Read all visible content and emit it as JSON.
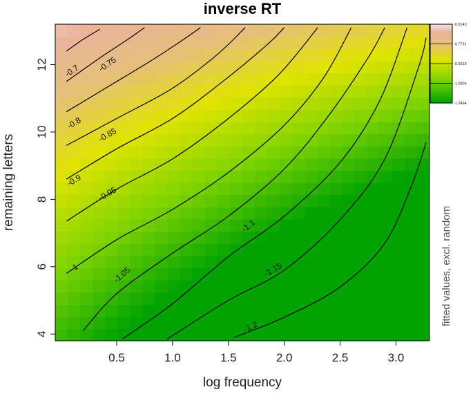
{
  "chart_data": {
    "type": "heatmap",
    "title": "inverse RT",
    "xlabel": "log frequency",
    "ylabel": "remaining letters",
    "xlim": [
      -0.05,
      3.3
    ],
    "ylim": [
      3.8,
      13.2
    ],
    "x_ticks": [
      {
        "value": 0.5,
        "label": "0.5"
      },
      {
        "value": 1.0,
        "label": "1.0"
      },
      {
        "value": 1.5,
        "label": "1.5"
      },
      {
        "value": 2.0,
        "label": "2.0"
      },
      {
        "value": 2.5,
        "label": "2.5"
      },
      {
        "value": 3.0,
        "label": "3.0"
      }
    ],
    "y_ticks": [
      {
        "value": 4,
        "label": "4"
      },
      {
        "value": 6,
        "label": "6"
      },
      {
        "value": 8,
        "label": "8"
      },
      {
        "value": 10,
        "label": "10"
      },
      {
        "value": 12,
        "label": "12"
      }
    ],
    "colorbar": {
      "label": "fitted values, excl. random",
      "ticks": [
        {
          "value": -0.6143,
          "label": "-0.6143"
        },
        {
          "value": -0.7731,
          "label": "-0.7731"
        },
        {
          "value": -0.9318,
          "label": "-0.9318"
        },
        {
          "value": -1.0906,
          "label": "-1.0906"
        },
        {
          "value": -1.2494,
          "label": "-1.2494"
        }
      ]
    },
    "contours": [
      {
        "level": -0.7,
        "label": "-0.7",
        "points": [
          [
            0.05,
            12.4
          ],
          [
            0.2,
            12.75
          ],
          [
            0.35,
            13.05
          ]
        ],
        "label_at": [
          0.1,
          11.8
        ]
      },
      {
        "level": -0.75,
        "label": "-0.75",
        "points": [
          [
            0.05,
            11.5
          ],
          [
            0.35,
            12.2
          ],
          [
            0.6,
            12.75
          ],
          [
            0.75,
            13.1
          ]
        ],
        "label_at": [
          0.42,
          12.0
        ]
      },
      {
        "level": -0.8,
        "label": "-0.8",
        "points": [
          [
            0.05,
            10.6
          ],
          [
            0.4,
            11.3
          ],
          [
            0.8,
            12.1
          ],
          [
            1.1,
            12.75
          ],
          [
            1.25,
            13.1
          ]
        ],
        "label_at": [
          0.12,
          10.25
        ]
      },
      {
        "level": -0.85,
        "label": "-0.85",
        "points": [
          [
            0.05,
            9.6
          ],
          [
            0.5,
            10.4
          ],
          [
            1.0,
            11.3
          ],
          [
            1.4,
            12.3
          ],
          [
            1.65,
            13.1
          ]
        ],
        "label_at": [
          0.42,
          9.9
        ]
      },
      {
        "level": -0.9,
        "label": "-0.9",
        "points": [
          [
            0.05,
            8.6
          ],
          [
            0.5,
            9.5
          ],
          [
            1.0,
            10.4
          ],
          [
            1.45,
            11.5
          ],
          [
            1.85,
            12.6
          ],
          [
            2.0,
            13.1
          ]
        ],
        "label_at": [
          0.12,
          8.55
        ]
      },
      {
        "level": -0.95,
        "label": "-0.95",
        "points": [
          [
            0.05,
            7.35
          ],
          [
            0.5,
            8.3
          ],
          [
            1.0,
            9.2
          ],
          [
            1.5,
            10.4
          ],
          [
            1.95,
            11.7
          ],
          [
            2.3,
            13.1
          ]
        ],
        "label_at": [
          0.42,
          8.15
        ]
      },
      {
        "level": -1.0,
        "label": "-1",
        "points": [
          [
            0.05,
            5.8
          ],
          [
            0.5,
            6.8
          ],
          [
            1.0,
            7.7
          ],
          [
            1.5,
            8.8
          ],
          [
            2.0,
            10.2
          ],
          [
            2.35,
            11.6
          ],
          [
            2.6,
            13.1
          ]
        ],
        "label_at": [
          0.12,
          5.95
        ]
      },
      {
        "level": -1.05,
        "label": "-1.05",
        "points": [
          [
            0.2,
            4.1
          ],
          [
            0.5,
            5.2
          ],
          [
            1.0,
            6.4
          ],
          [
            1.5,
            7.5
          ],
          [
            2.0,
            8.9
          ],
          [
            2.4,
            10.5
          ],
          [
            2.75,
            12.2
          ],
          [
            2.9,
            13.1
          ]
        ],
        "label_at": [
          0.55,
          5.75
        ]
      },
      {
        "level": -1.1,
        "label": "-1.1",
        "points": [
          [
            0.55,
            3.85
          ],
          [
            1.0,
            4.9
          ],
          [
            1.5,
            6.3
          ],
          [
            2.0,
            7.5
          ],
          [
            2.5,
            9.1
          ],
          [
            2.85,
            10.9
          ],
          [
            3.1,
            13.1
          ]
        ],
        "label_at": [
          1.68,
          7.2
        ]
      },
      {
        "level": -1.15,
        "label": "-1.15",
        "points": [
          [
            0.95,
            3.85
          ],
          [
            1.5,
            5.0
          ],
          [
            2.0,
            5.9
          ],
          [
            2.5,
            7.4
          ],
          [
            2.9,
            9.2
          ],
          [
            3.2,
            11.9
          ],
          [
            3.27,
            12.8
          ]
        ],
        "label_at": [
          1.9,
          5.9
        ]
      },
      {
        "level": -1.2,
        "label": "-1.2",
        "points": [
          [
            1.55,
            3.9
          ],
          [
            2.0,
            4.5
          ],
          [
            2.5,
            5.4
          ],
          [
            2.9,
            6.7
          ],
          [
            3.15,
            8.5
          ],
          [
            3.27,
            9.7
          ]
        ],
        "label_at": [
          1.7,
          4.2
        ]
      }
    ],
    "colors": {
      "top_left": "#f2e8ea",
      "pink": "#e9b39b",
      "tan": "#e6c07a",
      "yellow": "#e0e400",
      "light_green": "#7fd400",
      "green": "#00a300"
    },
    "grid": false,
    "legend": "right"
  }
}
